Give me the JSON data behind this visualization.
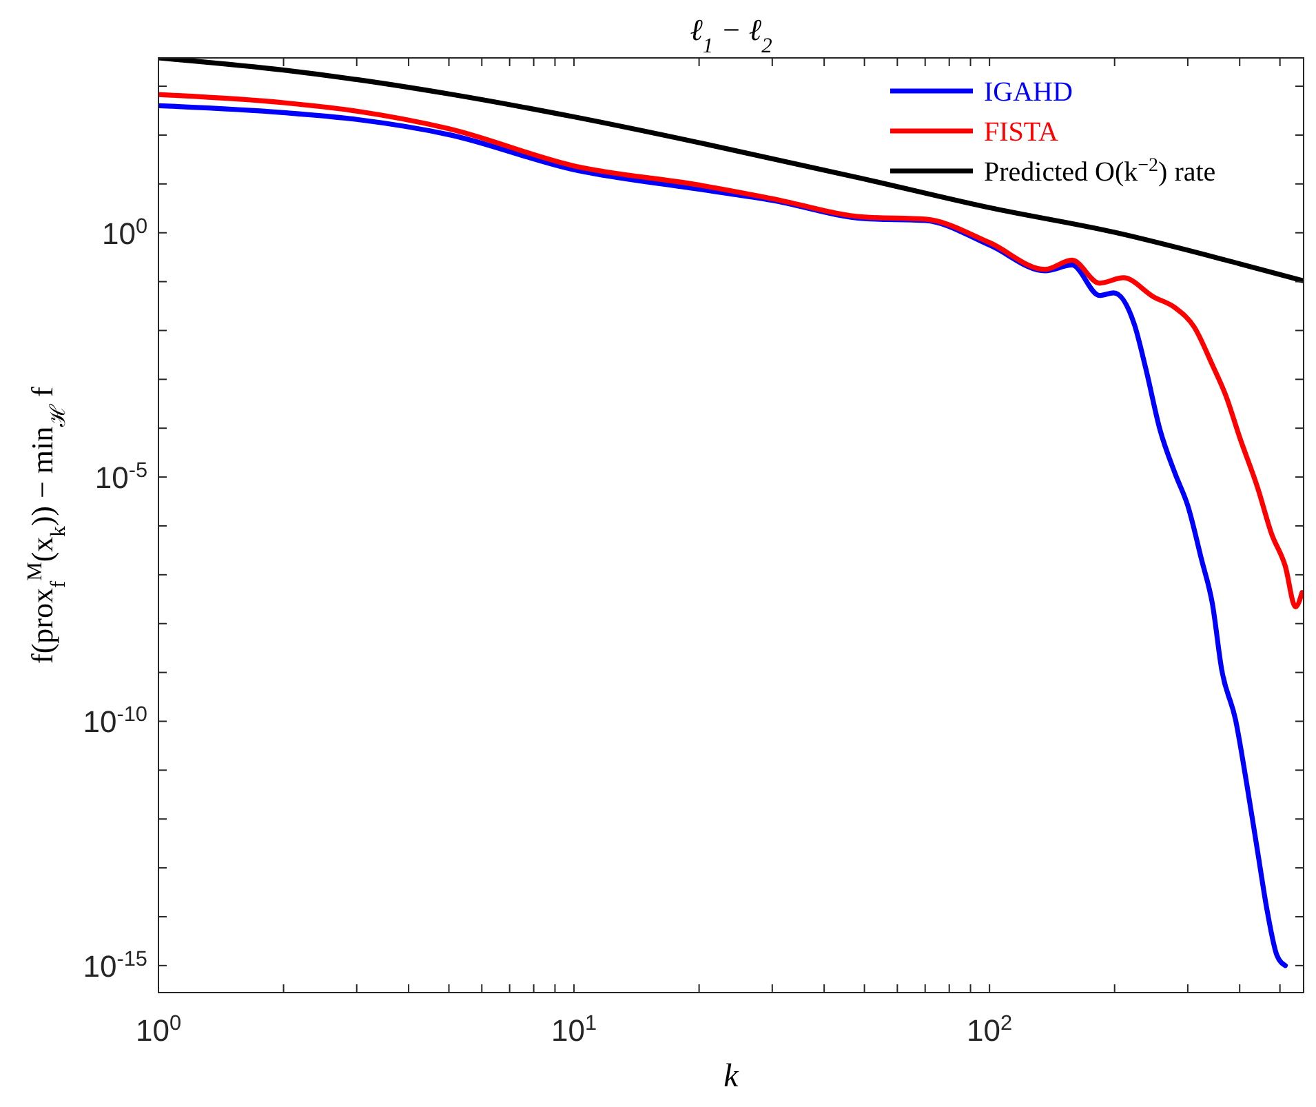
{
  "chart_data": {
    "type": "line",
    "title": "ℓ$_{1}$ − ℓ$_{2}$",
    "xlabel": "k",
    "ylabel": "f(prox$_{f}$$^{M}$(x$_{k}$)) − min$_{ℋ}$ f",
    "log": "xy",
    "legend": "top right",
    "line_style": "solid",
    "marker": "none",
    "grid": false,
    "xlim": [
      1,
      570
    ],
    "ylim": [
      2.8e-16,
      3800
    ],
    "xticks": [
      {
        "value": 1,
        "label": "10$^{0}$"
      },
      {
        "value": 2,
        "label": null
      },
      {
        "value": 3,
        "label": null
      },
      {
        "value": 4,
        "label": null
      },
      {
        "value": 5,
        "label": null
      },
      {
        "value": 6,
        "label": null
      },
      {
        "value": 7,
        "label": null
      },
      {
        "value": 8,
        "label": null
      },
      {
        "value": 9,
        "label": null
      },
      {
        "value": 10,
        "label": "10$^{1}$"
      },
      {
        "value": 20,
        "label": null
      },
      {
        "value": 30,
        "label": null
      },
      {
        "value": 40,
        "label": null
      },
      {
        "value": 50,
        "label": null
      },
      {
        "value": 60,
        "label": null
      },
      {
        "value": 70,
        "label": null
      },
      {
        "value": 80,
        "label": null
      },
      {
        "value": 90,
        "label": null
      },
      {
        "value": 100,
        "label": "10$^{2}$"
      },
      {
        "value": 200,
        "label": null
      },
      {
        "value": 300,
        "label": null
      },
      {
        "value": 400,
        "label": null
      },
      {
        "value": 500,
        "label": null
      }
    ],
    "yticks": [
      {
        "value": 1e-15,
        "label": "10$^{-15}$"
      },
      {
        "value": 1e-14,
        "label": null
      },
      {
        "value": 1e-13,
        "label": null
      },
      {
        "value": 1e-12,
        "label": null
      },
      {
        "value": 1e-11,
        "label": null
      },
      {
        "value": 1e-10,
        "label": "10$^{-10}$"
      },
      {
        "value": 1e-09,
        "label": null
      },
      {
        "value": 1e-08,
        "label": null
      },
      {
        "value": 1e-07,
        "label": null
      },
      {
        "value": 1e-06,
        "label": null
      },
      {
        "value": 1e-05,
        "label": "10$^{-5}$"
      },
      {
        "value": 0.0001,
        "label": null
      },
      {
        "value": 0.001,
        "label": null
      },
      {
        "value": 0.01,
        "label": null
      },
      {
        "value": 0.1,
        "label": null
      },
      {
        "value": 1,
        "label": "10$^{0}$"
      },
      {
        "value": 10,
        "label": null
      },
      {
        "value": 100,
        "label": null
      },
      {
        "value": 1000,
        "label": null
      }
    ],
    "series": [
      {
        "name": "IGAHD",
        "color": "#0000ff",
        "x": [
          1,
          2,
          3,
          5,
          10,
          20,
          30,
          50,
          70,
          100,
          136,
          158,
          184,
          199,
          223,
          238,
          257,
          280,
          300,
          324,
          344,
          362,
          391,
          416,
          442,
          466,
          492,
          515
        ],
        "values": [
          400,
          288,
          209,
          102,
          19.5,
          7.8,
          4.6,
          1.95,
          1.78,
          0.56,
          0.166,
          0.219,
          0.052,
          0.059,
          0.0135,
          0.0016,
          9.5e-05,
          1.15e-05,
          2.6e-06,
          2e-07,
          2.5e-08,
          1.15e-09,
          1.07e-10,
          5.2e-12,
          2.1e-13,
          1.3e-14,
          1.6e-15,
          1e-15
        ]
      },
      {
        "name": "FISTA",
        "color": "#ff0000",
        "x": [
          1,
          2,
          3,
          5,
          10,
          20,
          30,
          50,
          70,
          100,
          136,
          158,
          184,
          210,
          248,
          280,
          311,
          344,
          371,
          400,
          442,
          477,
          515,
          545,
          565
        ],
        "values": [
          675,
          460,
          309,
          135,
          23.4,
          9.5,
          5,
          2.1,
          1.9,
          0.63,
          0.178,
          0.275,
          0.093,
          0.12,
          0.049,
          0.029,
          0.0117,
          0.00195,
          0.00045,
          6.5e-05,
          6e-06,
          7e-07,
          1.5e-07,
          2.2e-08,
          4.3e-08
        ]
      },
      {
        "name": "Predicted O(k$^{−2}$) rate",
        "color": "#000000",
        "x": [
          1,
          2,
          3,
          5,
          10,
          20,
          50,
          100,
          200,
          400,
          570
        ],
        "values": [
          3800,
          2140,
          1370,
          695,
          236,
          70,
          12.6,
          3.26,
          1.02,
          0.232,
          0.104
        ]
      }
    ]
  }
}
